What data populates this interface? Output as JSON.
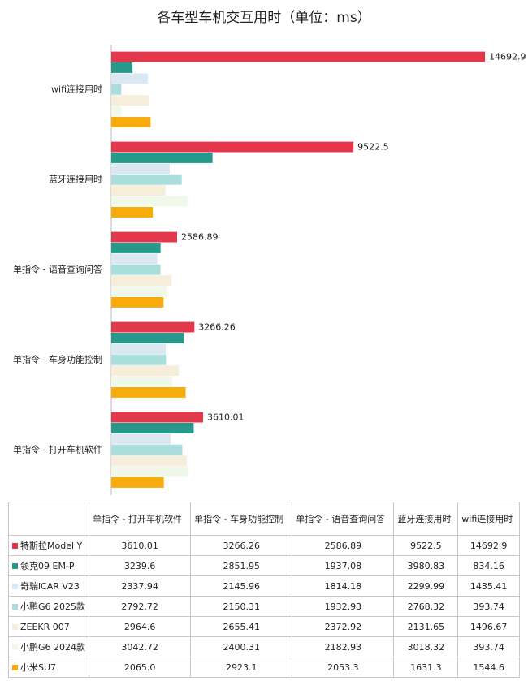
{
  "chart_data": {
    "type": "bar",
    "orientation": "horizontal",
    "title": "各车型车机交互用时（单位：ms）",
    "categories": [
      "单指令 - 打开车机软件",
      "单指令 - 车身功能控制",
      "单指令 - 语音查询问答",
      "蓝牙连接用时",
      "wifi连接用时"
    ],
    "series": [
      {
        "name": "特斯拉Model Y",
        "color": "#e3374b",
        "values": [
          3610.01,
          3266.26,
          2586.89,
          9522.5,
          14692.9
        ],
        "data_labels": true
      },
      {
        "name": "领克09 EM-P",
        "color": "#26998a",
        "values": [
          3239.6,
          2851.95,
          1937.08,
          3980.83,
          834.16
        ]
      },
      {
        "name": "奇瑞iCAR V23",
        "color": "#dbe8f1",
        "values": [
          2337.94,
          2145.96,
          1814.18,
          2299.99,
          1435.41
        ]
      },
      {
        "name": "小鹏G6 2025款",
        "color": "#a9dedd",
        "values": [
          2792.72,
          2150.31,
          1932.93,
          2768.32,
          393.74
        ]
      },
      {
        "name": "ZEEKR 007",
        "color": "#f6eddb",
        "values": [
          2964.6,
          2655.41,
          2372.92,
          2131.65,
          1496.67
        ]
      },
      {
        "name": "小鹏G6 2024款",
        "color": "#eff8e9",
        "values": [
          3042.72,
          2400.31,
          2182.93,
          3018.32,
          393.74
        ]
      },
      {
        "name": "小米SU7",
        "color": "#f7ab0c",
        "values": [
          2065.0,
          2923.1,
          2053.3,
          1631.3,
          1544.6
        ],
        "value_labels": [
          "2065.0",
          "2923.1",
          "2053.3",
          "1631.3",
          "1544.6"
        ]
      }
    ],
    "xlim": [
      0,
      16000
    ]
  }
}
